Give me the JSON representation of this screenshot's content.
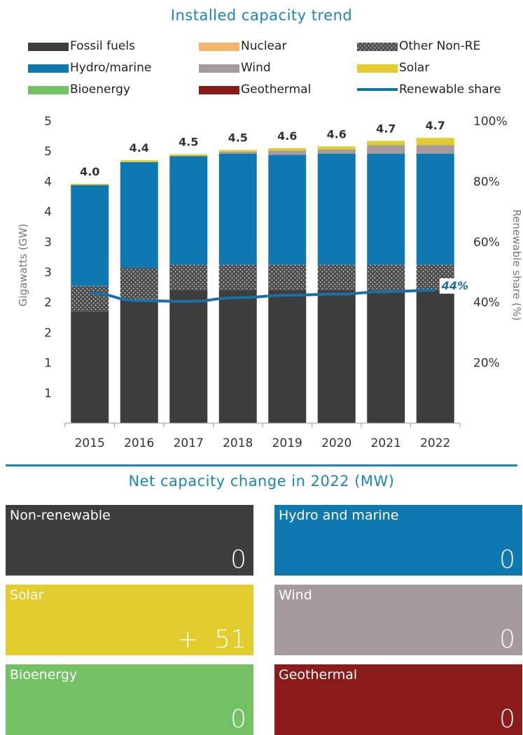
{
  "titles": {
    "top": "Installed capacity trend",
    "bottom": "Net capacity change in 2022 (MW)"
  },
  "legend": [
    {
      "name": "Fossil fuels",
      "color": "#3d3d3d"
    },
    {
      "name": "Nuclear",
      "color": "#f5b46b"
    },
    {
      "name": "Other Non-RE",
      "color": "#4a4a4a",
      "pattern": "dots"
    },
    {
      "name": "Hydro/marine",
      "color": "#0f78b0"
    },
    {
      "name": "Wind",
      "color": "#a59a9c"
    },
    {
      "name": "Solar",
      "color": "#e3cd2e"
    },
    {
      "name": "Bioenergy",
      "color": "#72c164"
    },
    {
      "name": "Geothermal",
      "color": "#8b1a1a"
    },
    {
      "name": "Renewable share",
      "color": "#1a6fa5",
      "style": "line"
    }
  ],
  "chart_data": {
    "type": "bar",
    "title": "Installed capacity trend",
    "categories": [
      "2015",
      "2016",
      "2017",
      "2018",
      "2019",
      "2020",
      "2021",
      "2022"
    ],
    "series": [
      {
        "name": "Fossil fuels",
        "values": [
          1.85,
          2.05,
          2.2,
          2.2,
          2.2,
          2.2,
          2.2,
          2.2
        ]
      },
      {
        "name": "Other Non-RE",
        "values": [
          0.42,
          0.52,
          0.42,
          0.42,
          0.42,
          0.42,
          0.42,
          0.42
        ]
      },
      {
        "name": "Hydro/marine",
        "values": [
          1.67,
          1.75,
          1.8,
          1.84,
          1.82,
          1.84,
          1.84,
          1.84
        ]
      },
      {
        "name": "Wind",
        "values": [
          0,
          0,
          0,
          0.03,
          0.07,
          0.07,
          0.14,
          0.14
        ]
      },
      {
        "name": "Solar",
        "values": [
          0.02,
          0.03,
          0.03,
          0.03,
          0.04,
          0.05,
          0.07,
          0.12
        ]
      }
    ],
    "totals": [
      "4.0",
      "4.4",
      "4.5",
      "4.5",
      "4.6",
      "4.6",
      "4.7",
      "4.7"
    ],
    "line": {
      "name": "Renewable share",
      "values": [
        43,
        40.5,
        40.3,
        41.5,
        42.3,
        42.7,
        43.5,
        44
      ]
    },
    "line_end_label": "44%",
    "ylabel": "Gigawatts (GW)",
    "y2label": "Renewable share (%)",
    "y_ticks": [
      "1",
      "1",
      "2",
      "2",
      "3",
      "3",
      "4",
      "4",
      "5",
      "5"
    ],
    "y2_ticks": [
      "20%",
      "40%",
      "60%",
      "80%",
      "100%"
    ],
    "ylim": [
      0,
      5
    ],
    "y2lim": [
      0,
      100
    ]
  },
  "tiles": [
    {
      "label": "Non-renewable",
      "value": "0",
      "color": "#3d3d3d"
    },
    {
      "label": "Hydro and marine",
      "value": "0",
      "color": "#0f78b0"
    },
    {
      "label": "Solar",
      "value": "+  51",
      "color": "#e3cd2e"
    },
    {
      "label": "Wind",
      "value": "0",
      "color": "#a59a9c"
    },
    {
      "label": "Bioenergy",
      "value": "0",
      "color": "#72c164"
    },
    {
      "label": "Geothermal",
      "value": "0",
      "color": "#8b1a1a"
    }
  ]
}
